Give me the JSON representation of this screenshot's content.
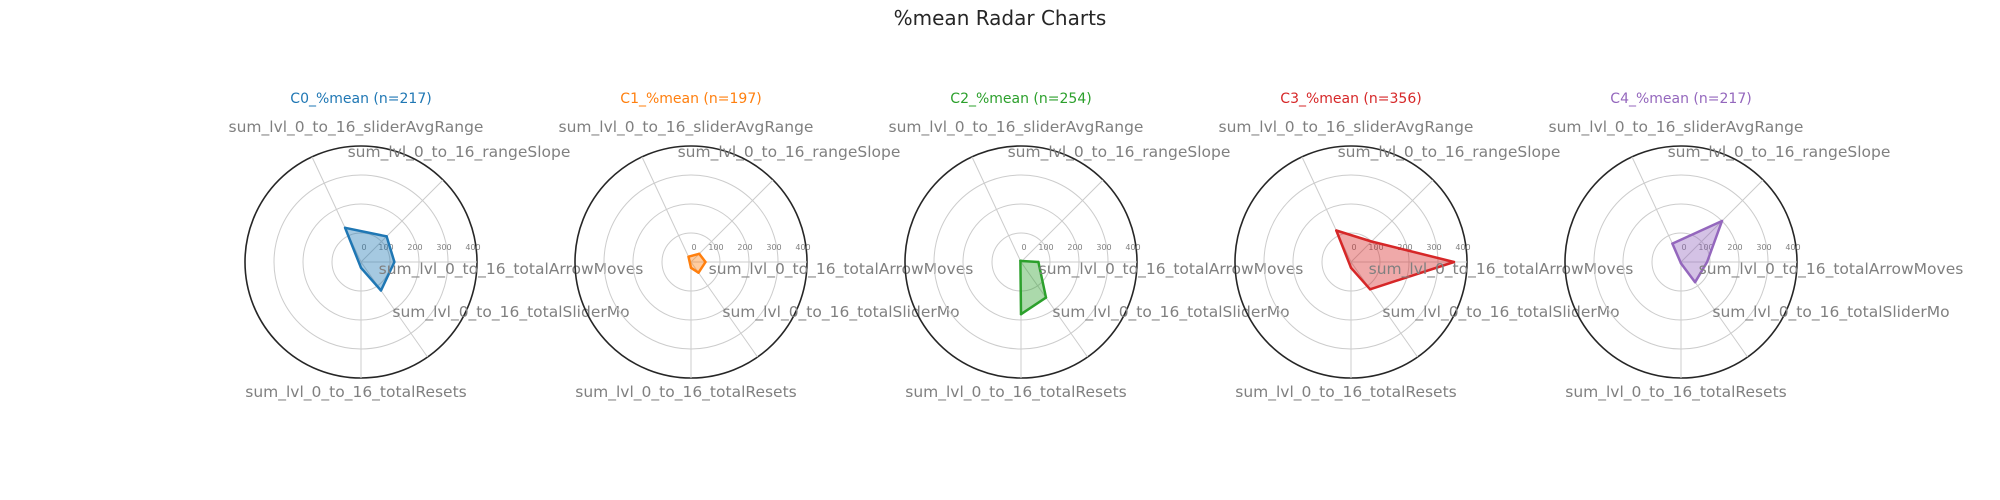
{
  "figure": {
    "title": "%mean Radar Charts"
  },
  "chart_data": [
    {
      "type": "radar",
      "title": "C0_%mean (n=217)",
      "color": "#1f77b4",
      "axes": [
        "sum_lvl_0_to_16_sliderAvgRange",
        "sum_lvl_0_to_16_rangeSlope",
        "sum_lvl_0_to_16_totalArrowMoves",
        "sum_lvl_0_to_16_totalSliderMoves",
        "sum_lvl_0_to_16_totalResets"
      ],
      "axis_display": [
        "sum_lvl_0_to_16_sliderAvgRange",
        "sum_lvl_0_to_16_rangeSlope",
        "sum_lvl_0_to_16_totalArrowMoves",
        "sum_lvl_0_to_16_totalSliderMo",
        "sum_lvl_0_to_16_totalResets"
      ],
      "values": [
        130,
        125,
        115,
        120,
        20
      ],
      "rlim": [
        0,
        400
      ],
      "rticks": [
        0,
        100,
        200,
        300,
        400
      ]
    },
    {
      "type": "radar",
      "title": "C1_%mean (n=197)",
      "color": "#ff7f0e",
      "axes": [
        "sum_lvl_0_to_16_sliderAvgRange",
        "sum_lvl_0_to_16_rangeSlope",
        "sum_lvl_0_to_16_totalArrowMoves",
        "sum_lvl_0_to_16_totalSliderMoves",
        "sum_lvl_0_to_16_totalResets"
      ],
      "axis_display": [
        "sum_lvl_0_to_16_sliderAvgRange",
        "sum_lvl_0_to_16_rangeSlope",
        "sum_lvl_0_to_16_totalArrowMoves",
        "sum_lvl_0_to_16_totalSliderMo",
        "sum_lvl_0_to_16_totalResets"
      ],
      "values": [
        20,
        40,
        50,
        45,
        20
      ],
      "rlim": [
        0,
        400
      ],
      "rticks": [
        0,
        100,
        200,
        300,
        400
      ]
    },
    {
      "type": "radar",
      "title": "C2_%mean (n=254)",
      "color": "#2ca02c",
      "axes": [
        "sum_lvl_0_to_16_sliderAvgRange",
        "sum_lvl_0_to_16_rangeSlope",
        "sum_lvl_0_to_16_totalArrowMoves",
        "sum_lvl_0_to_16_totalSliderMoves",
        "sum_lvl_0_to_16_totalResets"
      ],
      "axis_display": [
        "sum_lvl_0_to_16_sliderAvgRange",
        "sum_lvl_0_to_16_rangeSlope",
        "sum_lvl_0_to_16_totalArrowMoves",
        "sum_lvl_0_to_16_totalSliderMo",
        "sum_lvl_0_to_16_totalResets"
      ],
      "values": [
        5,
        5,
        60,
        150,
        180
      ],
      "rlim": [
        0,
        400
      ],
      "rticks": [
        0,
        100,
        200,
        300,
        400
      ]
    },
    {
      "type": "radar",
      "title": "C3_%mean (n=356)",
      "color": "#d62728",
      "axes": [
        "sum_lvl_0_to_16_sliderAvgRange",
        "sum_lvl_0_to_16_rangeSlope",
        "sum_lvl_0_to_16_totalArrowMoves",
        "sum_lvl_0_to_16_totalSliderMoves",
        "sum_lvl_0_to_16_totalResets"
      ],
      "axis_display": [
        "sum_lvl_0_to_16_sliderAvgRange",
        "sum_lvl_0_to_16_rangeSlope",
        "sum_lvl_0_to_16_totalArrowMoves",
        "sum_lvl_0_to_16_totalSliderMo",
        "sum_lvl_0_to_16_totalResets"
      ],
      "values": [
        120,
        100,
        355,
        115,
        20
      ],
      "rlim": [
        0,
        400
      ],
      "rticks": [
        0,
        100,
        200,
        300,
        400
      ]
    },
    {
      "type": "radar",
      "title": "C4_%mean (n=217)",
      "color": "#9467bd",
      "axes": [
        "sum_lvl_0_to_16_sliderAvgRange",
        "sum_lvl_0_to_16_rangeSlope",
        "sum_lvl_0_to_16_totalArrowMoves",
        "sum_lvl_0_to_16_totalSliderMoves",
        "sum_lvl_0_to_16_totalResets"
      ],
      "axis_display": [
        "sum_lvl_0_to_16_sliderAvgRange",
        "sum_lvl_0_to_16_rangeSlope",
        "sum_lvl_0_to_16_totalArrowMoves",
        "sum_lvl_0_to_16_totalSliderMo",
        "sum_lvl_0_to_16_totalResets"
      ],
      "values": [
        70,
        200,
        90,
        85,
        5
      ],
      "rlim": [
        0,
        400
      ],
      "rticks": [
        0,
        100,
        200,
        300,
        400
      ]
    }
  ]
}
